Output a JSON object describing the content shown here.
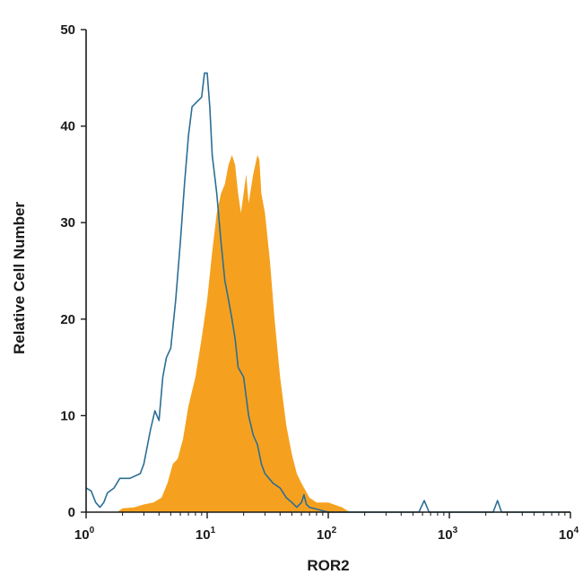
{
  "chart_data": {
    "type": "area",
    "title": "",
    "xlabel": "ROR2",
    "ylabel": "Relative Cell Number",
    "x_scale": "log",
    "xlim": [
      1,
      10000
    ],
    "ylim": [
      0,
      50
    ],
    "grid": false,
    "y_ticks": [
      "0",
      "10",
      "20",
      "30",
      "40",
      "50"
    ],
    "x_ticks": [
      {
        "base": "10",
        "exp": "0"
      },
      {
        "base": "10",
        "exp": "1"
      },
      {
        "base": "10",
        "exp": "2"
      },
      {
        "base": "10",
        "exp": "3"
      },
      {
        "base": "10",
        "exp": "4"
      }
    ],
    "colors": {
      "stained": "#f5a11f",
      "control": "#2c6e96",
      "axis": "#1a1a1a"
    },
    "series": [
      {
        "style": "filled",
        "points": [
          [
            1.0,
            0
          ],
          [
            1.8,
            0
          ],
          [
            2.0,
            0.4
          ],
          [
            2.5,
            0.5
          ],
          [
            3.0,
            0.8
          ],
          [
            3.6,
            1.0
          ],
          [
            4.2,
            1.5
          ],
          [
            4.7,
            3.0
          ],
          [
            5.2,
            5.0
          ],
          [
            5.7,
            5.5
          ],
          [
            6.3,
            7.5
          ],
          [
            7.0,
            11
          ],
          [
            8.0,
            14
          ],
          [
            9.0,
            18
          ],
          [
            10,
            22
          ],
          [
            11,
            27
          ],
          [
            12,
            31
          ],
          [
            13,
            33
          ],
          [
            14,
            34
          ],
          [
            15,
            36
          ],
          [
            16,
            37
          ],
          [
            17,
            36
          ],
          [
            18,
            33
          ],
          [
            19,
            31
          ],
          [
            20,
            33
          ],
          [
            21,
            35
          ],
          [
            22,
            32
          ],
          [
            24,
            35
          ],
          [
            26,
            37
          ],
          [
            27,
            36.5
          ],
          [
            28,
            33
          ],
          [
            30,
            31
          ],
          [
            33,
            26
          ],
          [
            36,
            20
          ],
          [
            40,
            14
          ],
          [
            45,
            9
          ],
          [
            50,
            6
          ],
          [
            55,
            4
          ],
          [
            60,
            3
          ],
          [
            70,
            1.5
          ],
          [
            80,
            1
          ],
          [
            100,
            1
          ],
          [
            130,
            0.5
          ],
          [
            150,
            0
          ],
          [
            10000,
            0
          ]
        ]
      },
      {
        "style": "outline",
        "points": [
          [
            1.0,
            2.5
          ],
          [
            1.1,
            2.2
          ],
          [
            1.2,
            1.0
          ],
          [
            1.3,
            0.5
          ],
          [
            1.4,
            1.0
          ],
          [
            1.5,
            2.0
          ],
          [
            1.7,
            2.5
          ],
          [
            1.9,
            3.5
          ],
          [
            2.3,
            3.5
          ],
          [
            2.8,
            4.0
          ],
          [
            3.0,
            5.0
          ],
          [
            3.4,
            8.5
          ],
          [
            3.7,
            10.5
          ],
          [
            4.0,
            9.5
          ],
          [
            4.3,
            14
          ],
          [
            4.6,
            16
          ],
          [
            5.0,
            17
          ],
          [
            5.5,
            22
          ],
          [
            6.0,
            28
          ],
          [
            6.5,
            34
          ],
          [
            7.0,
            39
          ],
          [
            7.5,
            42
          ],
          [
            8.2,
            42.5
          ],
          [
            9.0,
            43
          ],
          [
            9.5,
            45.5
          ],
          [
            10,
            45.5
          ],
          [
            10.5,
            42
          ],
          [
            11,
            37
          ],
          [
            12,
            33
          ],
          [
            13,
            28
          ],
          [
            14,
            24
          ],
          [
            15,
            22
          ],
          [
            16,
            20
          ],
          [
            17,
            18
          ],
          [
            18,
            15
          ],
          [
            20,
            14
          ],
          [
            22,
            10
          ],
          [
            24,
            8
          ],
          [
            26,
            7
          ],
          [
            28,
            5
          ],
          [
            30,
            4
          ],
          [
            35,
            3
          ],
          [
            40,
            2.5
          ],
          [
            45,
            1.5
          ],
          [
            50,
            1
          ],
          [
            55,
            0.5
          ],
          [
            60,
            1
          ],
          [
            63,
            1.8
          ],
          [
            66,
            0.8
          ],
          [
            70,
            0.5
          ],
          [
            100,
            0
          ],
          [
            560,
            0
          ],
          [
            620,
            1.2
          ],
          [
            680,
            0
          ],
          [
            2300,
            0
          ],
          [
            2500,
            1.2
          ],
          [
            2700,
            0
          ],
          [
            10000,
            0
          ]
        ]
      }
    ]
  }
}
